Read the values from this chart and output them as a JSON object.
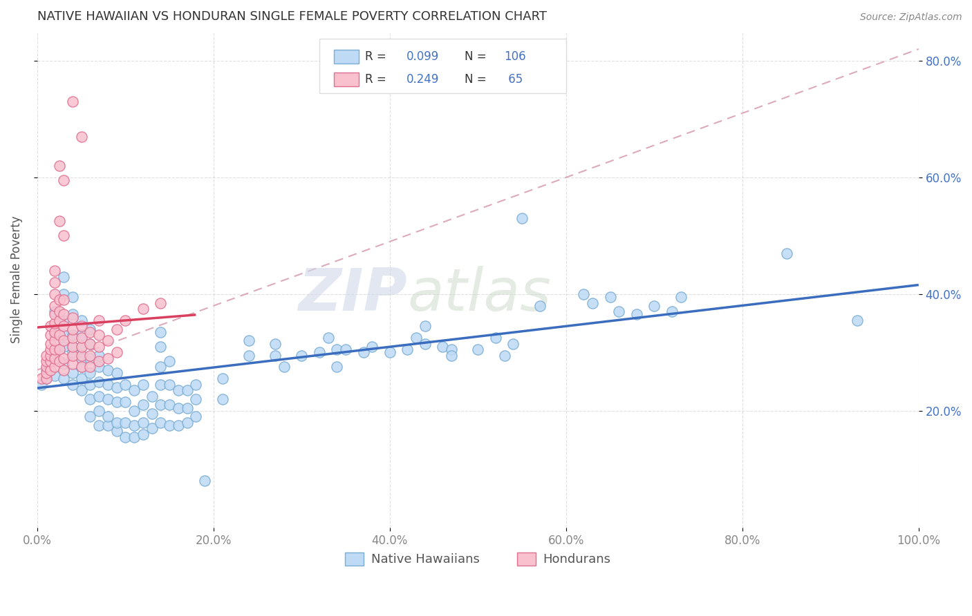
{
  "title": "NATIVE HAWAIIAN VS HONDURAN SINGLE FEMALE POVERTY CORRELATION CHART",
  "source": "Source: ZipAtlas.com",
  "ylabel": "Single Female Poverty",
  "xlim": [
    0.0,
    1.0
  ],
  "ylim": [
    0.0,
    0.85
  ],
  "xtick_labels": [
    "0.0%",
    "20.0%",
    "40.0%",
    "60.0%",
    "80.0%",
    "100.0%"
  ],
  "ytick_labels": [
    "20.0%",
    "40.0%",
    "60.0%",
    "80.0%"
  ],
  "ytick_values": [
    0.2,
    0.4,
    0.6,
    0.8
  ],
  "xtick_values": [
    0.0,
    0.2,
    0.4,
    0.6,
    0.8,
    1.0
  ],
  "blue_fill": "#BEDAF5",
  "blue_edge": "#7AADD4",
  "pink_fill": "#F9C0CE",
  "pink_edge": "#E07090",
  "blue_line_color": "#3B6DBF",
  "pink_line_color": "#D94060",
  "dash_line_color": "#E08090",
  "R_blue": 0.099,
  "N_blue": 106,
  "R_pink": 0.249,
  "N_pink": 65,
  "legend_label_blue": "Native Hawaiians",
  "legend_label_pink": "Hondurans",
  "watermark1": "ZIP",
  "watermark2": "atlas",
  "background_color": "#FFFFFF",
  "grid_color": "#CCCCCC",
  "title_color": "#333333",
  "blue_scatter": [
    [
      0.005,
      0.245
    ],
    [
      0.01,
      0.255
    ],
    [
      0.01,
      0.27
    ],
    [
      0.015,
      0.27
    ],
    [
      0.02,
      0.26
    ],
    [
      0.02,
      0.3
    ],
    [
      0.02,
      0.33
    ],
    [
      0.02,
      0.37
    ],
    [
      0.03,
      0.255
    ],
    [
      0.03,
      0.28
    ],
    [
      0.03,
      0.31
    ],
    [
      0.03,
      0.33
    ],
    [
      0.03,
      0.355
    ],
    [
      0.03,
      0.4
    ],
    [
      0.03,
      0.43
    ],
    [
      0.04,
      0.245
    ],
    [
      0.04,
      0.265
    ],
    [
      0.04,
      0.3
    ],
    [
      0.04,
      0.31
    ],
    [
      0.04,
      0.33
    ],
    [
      0.04,
      0.365
    ],
    [
      0.04,
      0.395
    ],
    [
      0.05,
      0.235
    ],
    [
      0.05,
      0.255
    ],
    [
      0.05,
      0.275
    ],
    [
      0.05,
      0.29
    ],
    [
      0.05,
      0.31
    ],
    [
      0.05,
      0.33
    ],
    [
      0.05,
      0.355
    ],
    [
      0.06,
      0.19
    ],
    [
      0.06,
      0.22
    ],
    [
      0.06,
      0.245
    ],
    [
      0.06,
      0.265
    ],
    [
      0.06,
      0.29
    ],
    [
      0.06,
      0.315
    ],
    [
      0.06,
      0.34
    ],
    [
      0.07,
      0.175
    ],
    [
      0.07,
      0.2
    ],
    [
      0.07,
      0.225
    ],
    [
      0.07,
      0.25
    ],
    [
      0.07,
      0.275
    ],
    [
      0.07,
      0.295
    ],
    [
      0.08,
      0.175
    ],
    [
      0.08,
      0.19
    ],
    [
      0.08,
      0.22
    ],
    [
      0.08,
      0.245
    ],
    [
      0.08,
      0.27
    ],
    [
      0.09,
      0.165
    ],
    [
      0.09,
      0.18
    ],
    [
      0.09,
      0.215
    ],
    [
      0.09,
      0.24
    ],
    [
      0.09,
      0.265
    ],
    [
      0.1,
      0.155
    ],
    [
      0.1,
      0.18
    ],
    [
      0.1,
      0.215
    ],
    [
      0.1,
      0.245
    ],
    [
      0.11,
      0.155
    ],
    [
      0.11,
      0.175
    ],
    [
      0.11,
      0.2
    ],
    [
      0.11,
      0.235
    ],
    [
      0.12,
      0.16
    ],
    [
      0.12,
      0.18
    ],
    [
      0.12,
      0.21
    ],
    [
      0.12,
      0.245
    ],
    [
      0.13,
      0.17
    ],
    [
      0.13,
      0.195
    ],
    [
      0.13,
      0.225
    ],
    [
      0.14,
      0.18
    ],
    [
      0.14,
      0.21
    ],
    [
      0.14,
      0.245
    ],
    [
      0.14,
      0.275
    ],
    [
      0.14,
      0.31
    ],
    [
      0.14,
      0.335
    ],
    [
      0.15,
      0.175
    ],
    [
      0.15,
      0.21
    ],
    [
      0.15,
      0.245
    ],
    [
      0.15,
      0.285
    ],
    [
      0.16,
      0.175
    ],
    [
      0.16,
      0.205
    ],
    [
      0.16,
      0.235
    ],
    [
      0.17,
      0.18
    ],
    [
      0.17,
      0.205
    ],
    [
      0.17,
      0.235
    ],
    [
      0.18,
      0.19
    ],
    [
      0.18,
      0.22
    ],
    [
      0.18,
      0.245
    ],
    [
      0.19,
      0.08
    ],
    [
      0.21,
      0.22
    ],
    [
      0.21,
      0.255
    ],
    [
      0.24,
      0.295
    ],
    [
      0.24,
      0.32
    ],
    [
      0.27,
      0.295
    ],
    [
      0.27,
      0.315
    ],
    [
      0.28,
      0.275
    ],
    [
      0.3,
      0.295
    ],
    [
      0.32,
      0.3
    ],
    [
      0.33,
      0.325
    ],
    [
      0.34,
      0.275
    ],
    [
      0.34,
      0.305
    ],
    [
      0.35,
      0.305
    ],
    [
      0.37,
      0.3
    ],
    [
      0.38,
      0.31
    ],
    [
      0.4,
      0.3
    ],
    [
      0.42,
      0.305
    ],
    [
      0.43,
      0.325
    ],
    [
      0.44,
      0.345
    ],
    [
      0.44,
      0.315
    ],
    [
      0.46,
      0.31
    ],
    [
      0.47,
      0.305
    ],
    [
      0.47,
      0.295
    ],
    [
      0.5,
      0.305
    ],
    [
      0.52,
      0.325
    ],
    [
      0.53,
      0.295
    ],
    [
      0.54,
      0.315
    ],
    [
      0.55,
      0.53
    ],
    [
      0.57,
      0.38
    ],
    [
      0.62,
      0.4
    ],
    [
      0.63,
      0.385
    ],
    [
      0.65,
      0.395
    ],
    [
      0.66,
      0.37
    ],
    [
      0.68,
      0.365
    ],
    [
      0.7,
      0.38
    ],
    [
      0.72,
      0.37
    ],
    [
      0.73,
      0.395
    ],
    [
      0.85,
      0.47
    ],
    [
      0.93,
      0.355
    ]
  ],
  "pink_scatter": [
    [
      0.005,
      0.255
    ],
    [
      0.01,
      0.255
    ],
    [
      0.01,
      0.265
    ],
    [
      0.01,
      0.275
    ],
    [
      0.01,
      0.285
    ],
    [
      0.01,
      0.295
    ],
    [
      0.015,
      0.27
    ],
    [
      0.015,
      0.285
    ],
    [
      0.015,
      0.295
    ],
    [
      0.015,
      0.305
    ],
    [
      0.015,
      0.315
    ],
    [
      0.015,
      0.33
    ],
    [
      0.015,
      0.345
    ],
    [
      0.02,
      0.275
    ],
    [
      0.02,
      0.29
    ],
    [
      0.02,
      0.305
    ],
    [
      0.02,
      0.32
    ],
    [
      0.02,
      0.335
    ],
    [
      0.02,
      0.35
    ],
    [
      0.02,
      0.365
    ],
    [
      0.02,
      0.38
    ],
    [
      0.02,
      0.4
    ],
    [
      0.02,
      0.42
    ],
    [
      0.02,
      0.44
    ],
    [
      0.025,
      0.285
    ],
    [
      0.025,
      0.305
    ],
    [
      0.025,
      0.33
    ],
    [
      0.025,
      0.355
    ],
    [
      0.025,
      0.37
    ],
    [
      0.025,
      0.39
    ],
    [
      0.03,
      0.27
    ],
    [
      0.03,
      0.29
    ],
    [
      0.03,
      0.32
    ],
    [
      0.03,
      0.345
    ],
    [
      0.03,
      0.365
    ],
    [
      0.03,
      0.39
    ],
    [
      0.04,
      0.28
    ],
    [
      0.04,
      0.295
    ],
    [
      0.04,
      0.31
    ],
    [
      0.04,
      0.325
    ],
    [
      0.04,
      0.34
    ],
    [
      0.04,
      0.36
    ],
    [
      0.05,
      0.275
    ],
    [
      0.05,
      0.295
    ],
    [
      0.05,
      0.31
    ],
    [
      0.05,
      0.325
    ],
    [
      0.05,
      0.345
    ],
    [
      0.06,
      0.275
    ],
    [
      0.06,
      0.295
    ],
    [
      0.06,
      0.315
    ],
    [
      0.06,
      0.335
    ],
    [
      0.07,
      0.285
    ],
    [
      0.07,
      0.31
    ],
    [
      0.07,
      0.33
    ],
    [
      0.07,
      0.355
    ],
    [
      0.08,
      0.29
    ],
    [
      0.08,
      0.32
    ],
    [
      0.09,
      0.3
    ],
    [
      0.09,
      0.34
    ],
    [
      0.1,
      0.355
    ],
    [
      0.12,
      0.375
    ],
    [
      0.14,
      0.385
    ],
    [
      0.025,
      0.525
    ],
    [
      0.03,
      0.5
    ],
    [
      0.025,
      0.62
    ],
    [
      0.03,
      0.595
    ],
    [
      0.04,
      0.73
    ],
    [
      0.05,
      0.67
    ]
  ]
}
